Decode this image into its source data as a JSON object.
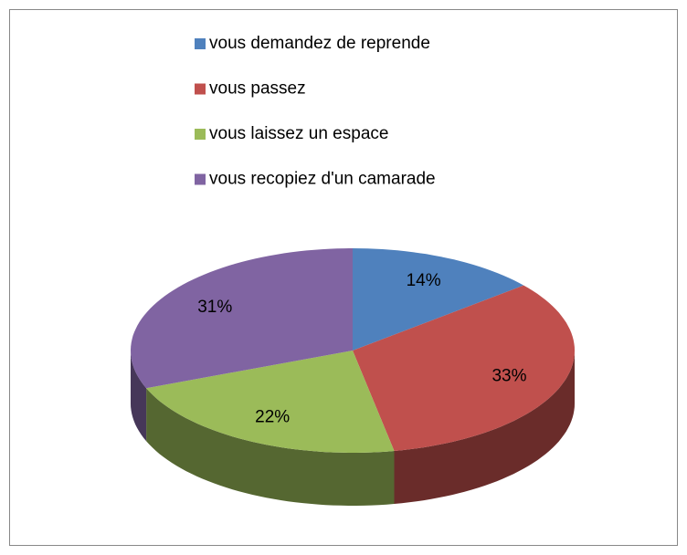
{
  "chart_data": {
    "type": "pie",
    "categories": [
      "vous demandez de reprende",
      "vous passez",
      "vous laissez un espace",
      "vous recopiez d'un camarade"
    ],
    "values": [
      14,
      33,
      22,
      31
    ],
    "value_labels": [
      "14%",
      "33%",
      "22%",
      "31%"
    ],
    "colors": [
      "#4f81bd",
      "#c0504d",
      "#9bbb59",
      "#8064a2"
    ],
    "legend": "top"
  }
}
